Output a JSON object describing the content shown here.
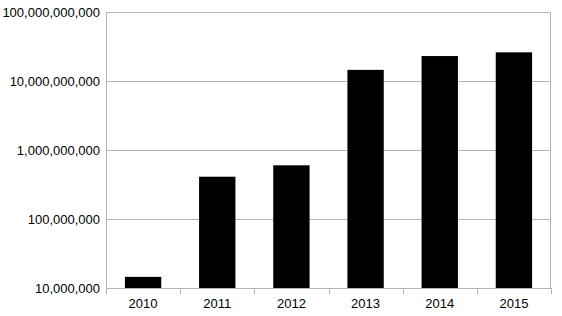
{
  "chart_data": {
    "type": "bar",
    "categories": [
      "2010",
      "2011",
      "2012",
      "2013",
      "2014",
      "2015"
    ],
    "values": [
      14500000,
      410000000,
      600000000,
      14500000000,
      23000000000,
      26000000000
    ],
    "color": "#000000",
    "log": "y",
    "ylim": [
      10000000,
      100000000000
    ],
    "yticks": [
      {
        "value": 10000000,
        "label": "10,000,000"
      },
      {
        "value": 100000000,
        "label": "100,000,000"
      },
      {
        "value": 1000000000,
        "label": "1,000,000,000"
      },
      {
        "value": 10000000000,
        "label": "10,000,000,000"
      },
      {
        "value": 100000000000,
        "label": "100,000,000,000"
      }
    ],
    "grid": true
  }
}
